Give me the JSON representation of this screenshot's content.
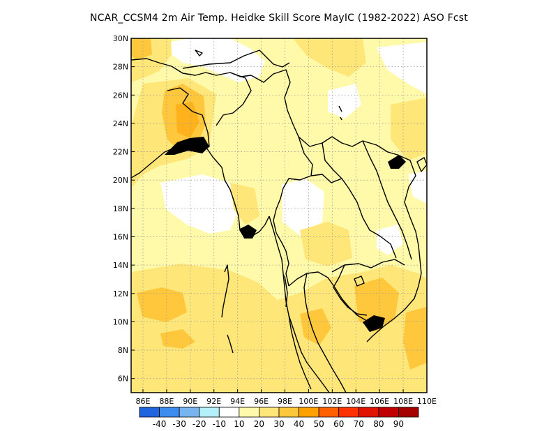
{
  "title": "NCAR_CCSM4 2m Air Temp. Heidke Skill Score MayIC (1982-2022) ASO Fcst",
  "map": {
    "region": "Mainland Southeast Asia",
    "lon_range": [
      85,
      110
    ],
    "lat_range": [
      5,
      30
    ],
    "lat_ticks": [
      "6N",
      "8N",
      "10N",
      "12N",
      "14N",
      "16N",
      "18N",
      "20N",
      "22N",
      "24N",
      "26N",
      "28N",
      "30N"
    ],
    "lon_ticks": [
      "86E",
      "88E",
      "90E",
      "92E",
      "94E",
      "96E",
      "98E",
      "100E",
      "102E",
      "104E",
      "106E",
      "108E",
      "110E"
    ],
    "grid": "dotted"
  },
  "colorbar": {
    "colors": [
      "#1e64dc",
      "#3c8cf0",
      "#78b4f0",
      "#b4f0fa",
      "#ffffff",
      "#fffaaa",
      "#ffe678",
      "#ffc83c",
      "#ffa000",
      "#ff6000",
      "#ff3200",
      "#e11400",
      "#c00000",
      "#a50000"
    ],
    "labels": [
      "-40",
      "-30",
      "-20",
      "-10",
      "10",
      "20",
      "30",
      "40",
      "50",
      "60",
      "70",
      "80",
      "90"
    ]
  },
  "colors": {
    "white": "#ffffff",
    "pale": "#fffaaa",
    "light": "#ffe678",
    "mid": "#ffc83c",
    "border": "#000000"
  }
}
